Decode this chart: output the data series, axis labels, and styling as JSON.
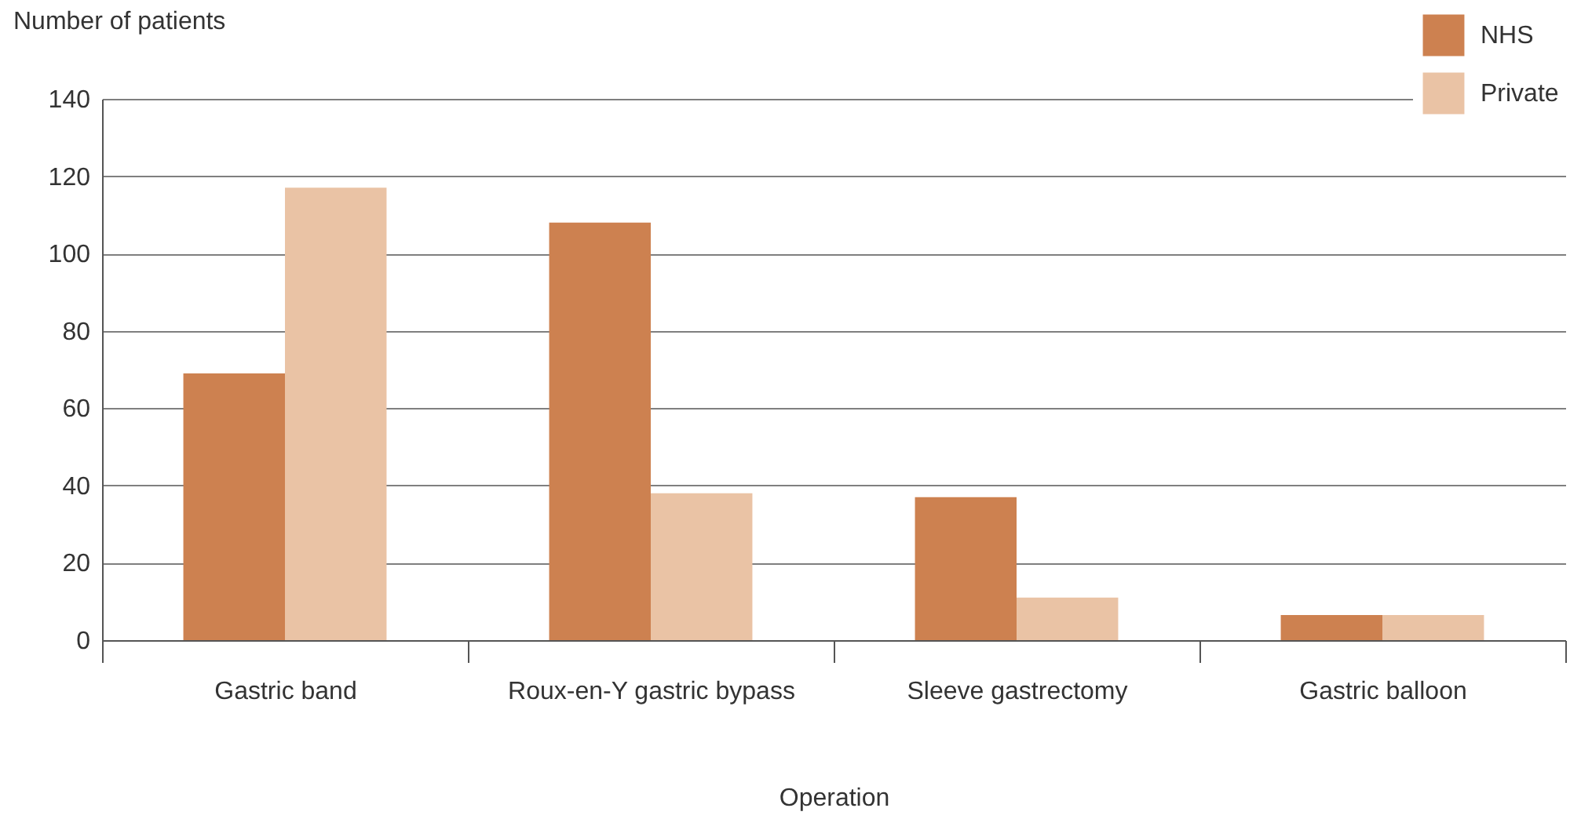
{
  "chart_data": {
    "type": "bar",
    "xlabel": "Operation",
    "ylabel": "Number of patients",
    "categories": [
      "Gastric band",
      "Roux-en-Y gastric bypass",
      "Sleeve gastrectomy",
      "Gastric balloon"
    ],
    "series": [
      {
        "name": "NHS",
        "color": "#cd8150",
        "values": [
          69,
          108,
          37,
          6.5
        ]
      },
      {
        "name": "Private",
        "color": "#eac3a5",
        "values": [
          117,
          38,
          11,
          6.5
        ]
      }
    ],
    "ylim": [
      0,
      140
    ],
    "yticks": [
      0,
      20,
      40,
      60,
      80,
      100,
      120,
      140
    ],
    "grid": "y",
    "legend": "top right"
  }
}
